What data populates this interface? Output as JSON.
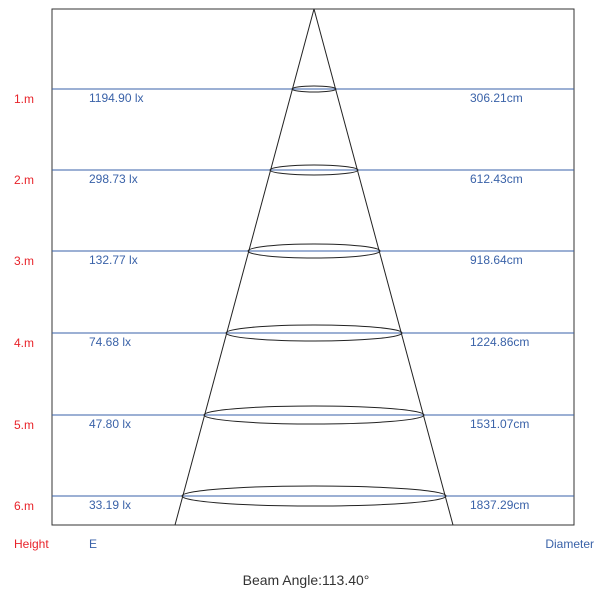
{
  "rows": [
    {
      "distance": "1.m",
      "illuminance": "1194.90 lx",
      "diameter": "306.21cm"
    },
    {
      "distance": "2.m",
      "illuminance": "298.73 lx",
      "diameter": "612.43cm"
    },
    {
      "distance": "3.m",
      "illuminance": "132.77 lx",
      "diameter": "918.64cm"
    },
    {
      "distance": "4.m",
      "illuminance": "74.68 lx",
      "diameter": "1224.86cm"
    },
    {
      "distance": "5.m",
      "illuminance": "47.80 lx",
      "diameter": "1531.07cm"
    },
    {
      "distance": "6.m",
      "illuminance": "33.19 lx",
      "diameter": "1837.29cm"
    }
  ],
  "labels": {
    "height": "Height",
    "illuminance": "E",
    "diameter": "Diameter"
  },
  "beam_angle": "Beam Angle:113.40°",
  "colors": {
    "height_label": "#e8232a",
    "value_text": "#3a62a8",
    "row_line": "#3a62a8",
    "frame": "#333333",
    "cone": "#222222"
  }
}
